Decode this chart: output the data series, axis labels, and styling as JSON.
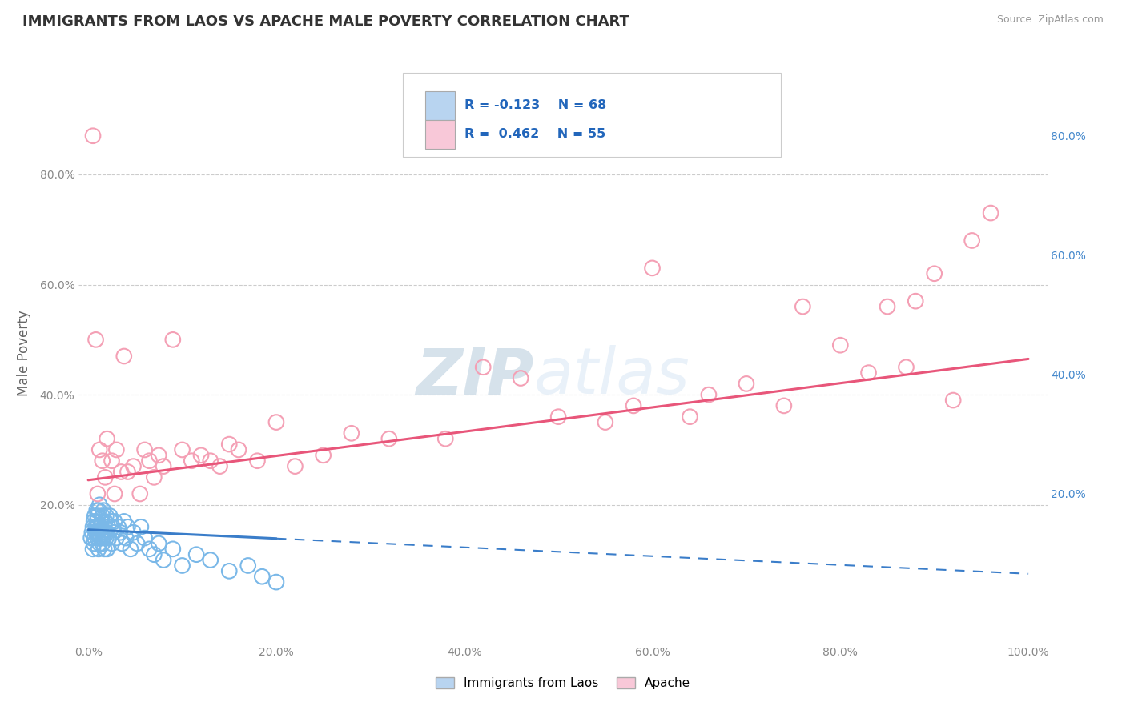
{
  "title": "IMMIGRANTS FROM LAOS VS APACHE MALE POVERTY CORRELATION CHART",
  "source": "Source: ZipAtlas.com",
  "ylabel": "Male Poverty",
  "watermark": "ZIPatlas",
  "legend_label_1": "Immigrants from Laos",
  "legend_label_2": "Apache",
  "R1": -0.123,
  "N1": 68,
  "R2": 0.462,
  "N2": 55,
  "xlim": [
    -0.01,
    1.02
  ],
  "ylim": [
    -0.05,
    0.92
  ],
  "color_blue": "#7ab8e8",
  "color_pink": "#f4a0b5",
  "line_color_blue": "#3a7dc9",
  "line_color_pink": "#e8567a",
  "legend_box_color_blue": "#b8d4f0",
  "legend_box_color_pink": "#f8c8d8",
  "grid_color": "#cccccc",
  "background_color": "#ffffff",
  "title_fontsize": 13,
  "scatter_blue_x": [
    0.003,
    0.004,
    0.005,
    0.005,
    0.006,
    0.006,
    0.007,
    0.007,
    0.008,
    0.008,
    0.009,
    0.009,
    0.01,
    0.01,
    0.01,
    0.01,
    0.011,
    0.011,
    0.012,
    0.012,
    0.013,
    0.013,
    0.014,
    0.014,
    0.015,
    0.015,
    0.016,
    0.016,
    0.017,
    0.017,
    0.018,
    0.018,
    0.019,
    0.019,
    0.02,
    0.02,
    0.021,
    0.022,
    0.023,
    0.024,
    0.025,
    0.026,
    0.027,
    0.028,
    0.03,
    0.032,
    0.034,
    0.036,
    0.038,
    0.04,
    0.042,
    0.045,
    0.048,
    0.052,
    0.056,
    0.06,
    0.065,
    0.07,
    0.075,
    0.08,
    0.09,
    0.1,
    0.115,
    0.13,
    0.15,
    0.17,
    0.185,
    0.2
  ],
  "scatter_blue_y": [
    0.14,
    0.15,
    0.12,
    0.16,
    0.13,
    0.17,
    0.14,
    0.18,
    0.15,
    0.16,
    0.17,
    0.19,
    0.14,
    0.15,
    0.16,
    0.18,
    0.12,
    0.19,
    0.13,
    0.2,
    0.14,
    0.16,
    0.15,
    0.17,
    0.13,
    0.18,
    0.14,
    0.19,
    0.12,
    0.16,
    0.15,
    0.17,
    0.14,
    0.18,
    0.12,
    0.15,
    0.16,
    0.14,
    0.18,
    0.17,
    0.13,
    0.16,
    0.15,
    0.17,
    0.14,
    0.16,
    0.15,
    0.13,
    0.17,
    0.14,
    0.16,
    0.12,
    0.15,
    0.13,
    0.16,
    0.14,
    0.12,
    0.11,
    0.13,
    0.1,
    0.12,
    0.09,
    0.11,
    0.1,
    0.08,
    0.09,
    0.07,
    0.06
  ],
  "scatter_pink_x": [
    0.005,
    0.008,
    0.01,
    0.012,
    0.015,
    0.018,
    0.02,
    0.025,
    0.028,
    0.03,
    0.035,
    0.038,
    0.042,
    0.048,
    0.055,
    0.06,
    0.065,
    0.07,
    0.075,
    0.08,
    0.09,
    0.1,
    0.11,
    0.12,
    0.13,
    0.14,
    0.15,
    0.16,
    0.18,
    0.2,
    0.22,
    0.25,
    0.28,
    0.32,
    0.38,
    0.42,
    0.46,
    0.5,
    0.55,
    0.58,
    0.6,
    0.64,
    0.66,
    0.7,
    0.74,
    0.76,
    0.8,
    0.83,
    0.85,
    0.87,
    0.88,
    0.9,
    0.92,
    0.94,
    0.96
  ],
  "scatter_pink_y": [
    0.87,
    0.5,
    0.22,
    0.3,
    0.28,
    0.25,
    0.32,
    0.28,
    0.22,
    0.3,
    0.26,
    0.47,
    0.26,
    0.27,
    0.22,
    0.3,
    0.28,
    0.25,
    0.29,
    0.27,
    0.5,
    0.3,
    0.28,
    0.29,
    0.28,
    0.27,
    0.31,
    0.3,
    0.28,
    0.35,
    0.27,
    0.29,
    0.33,
    0.32,
    0.32,
    0.45,
    0.43,
    0.36,
    0.35,
    0.38,
    0.63,
    0.36,
    0.4,
    0.42,
    0.38,
    0.56,
    0.49,
    0.44,
    0.56,
    0.45,
    0.57,
    0.62,
    0.39,
    0.68,
    0.73
  ],
  "blue_line_solid_end": 0.2,
  "blue_line_intercept": 0.155,
  "blue_line_slope": -0.08,
  "pink_line_intercept": 0.245,
  "pink_line_slope": 0.22
}
